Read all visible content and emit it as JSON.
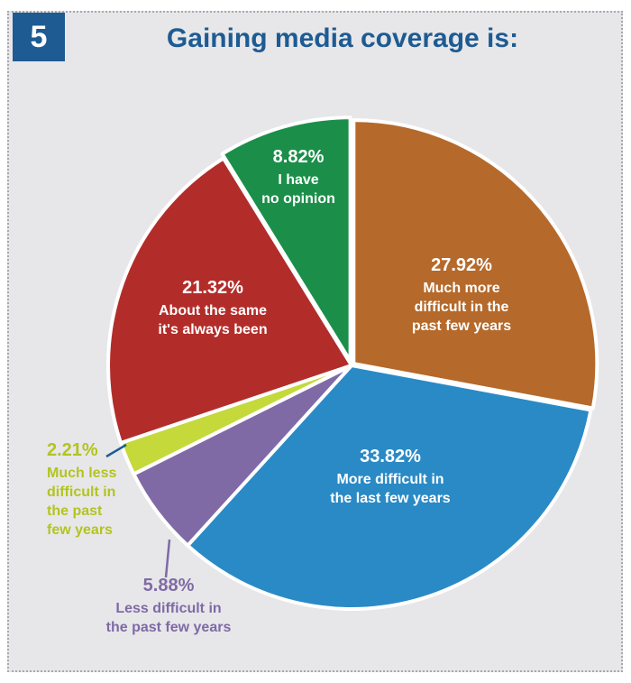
{
  "badge": "5",
  "title": "Gaining media coverage is:",
  "chart_data": {
    "type": "pie",
    "unit": "%",
    "slices": [
      {
        "pct_label": "27.92%",
        "value": 27.92,
        "lines": [
          "Much more",
          "difficult in the",
          "past few years"
        ],
        "color": "#b5692a"
      },
      {
        "pct_label": "33.82%",
        "value": 33.82,
        "lines": [
          "More difficult in",
          "the last few years"
        ],
        "color": "#2a8ac6"
      },
      {
        "pct_label": "5.88%",
        "value": 5.88,
        "lines": [
          "Less difficult in",
          "the past few years"
        ],
        "color": "#7f6aa6"
      },
      {
        "pct_label": "2.21%",
        "value": 2.21,
        "lines": [
          "Much less",
          "difficult in",
          "the past",
          "few years"
        ],
        "color": "#c5d93b"
      },
      {
        "pct_label": "21.32%",
        "value": 21.32,
        "lines": [
          "About the same",
          "it's always been"
        ],
        "color": "#b22d2a"
      },
      {
        "pct_label": "8.82%",
        "value": 8.82,
        "lines": [
          "I have",
          "no opinion"
        ],
        "color": "#1b8f49"
      }
    ]
  }
}
